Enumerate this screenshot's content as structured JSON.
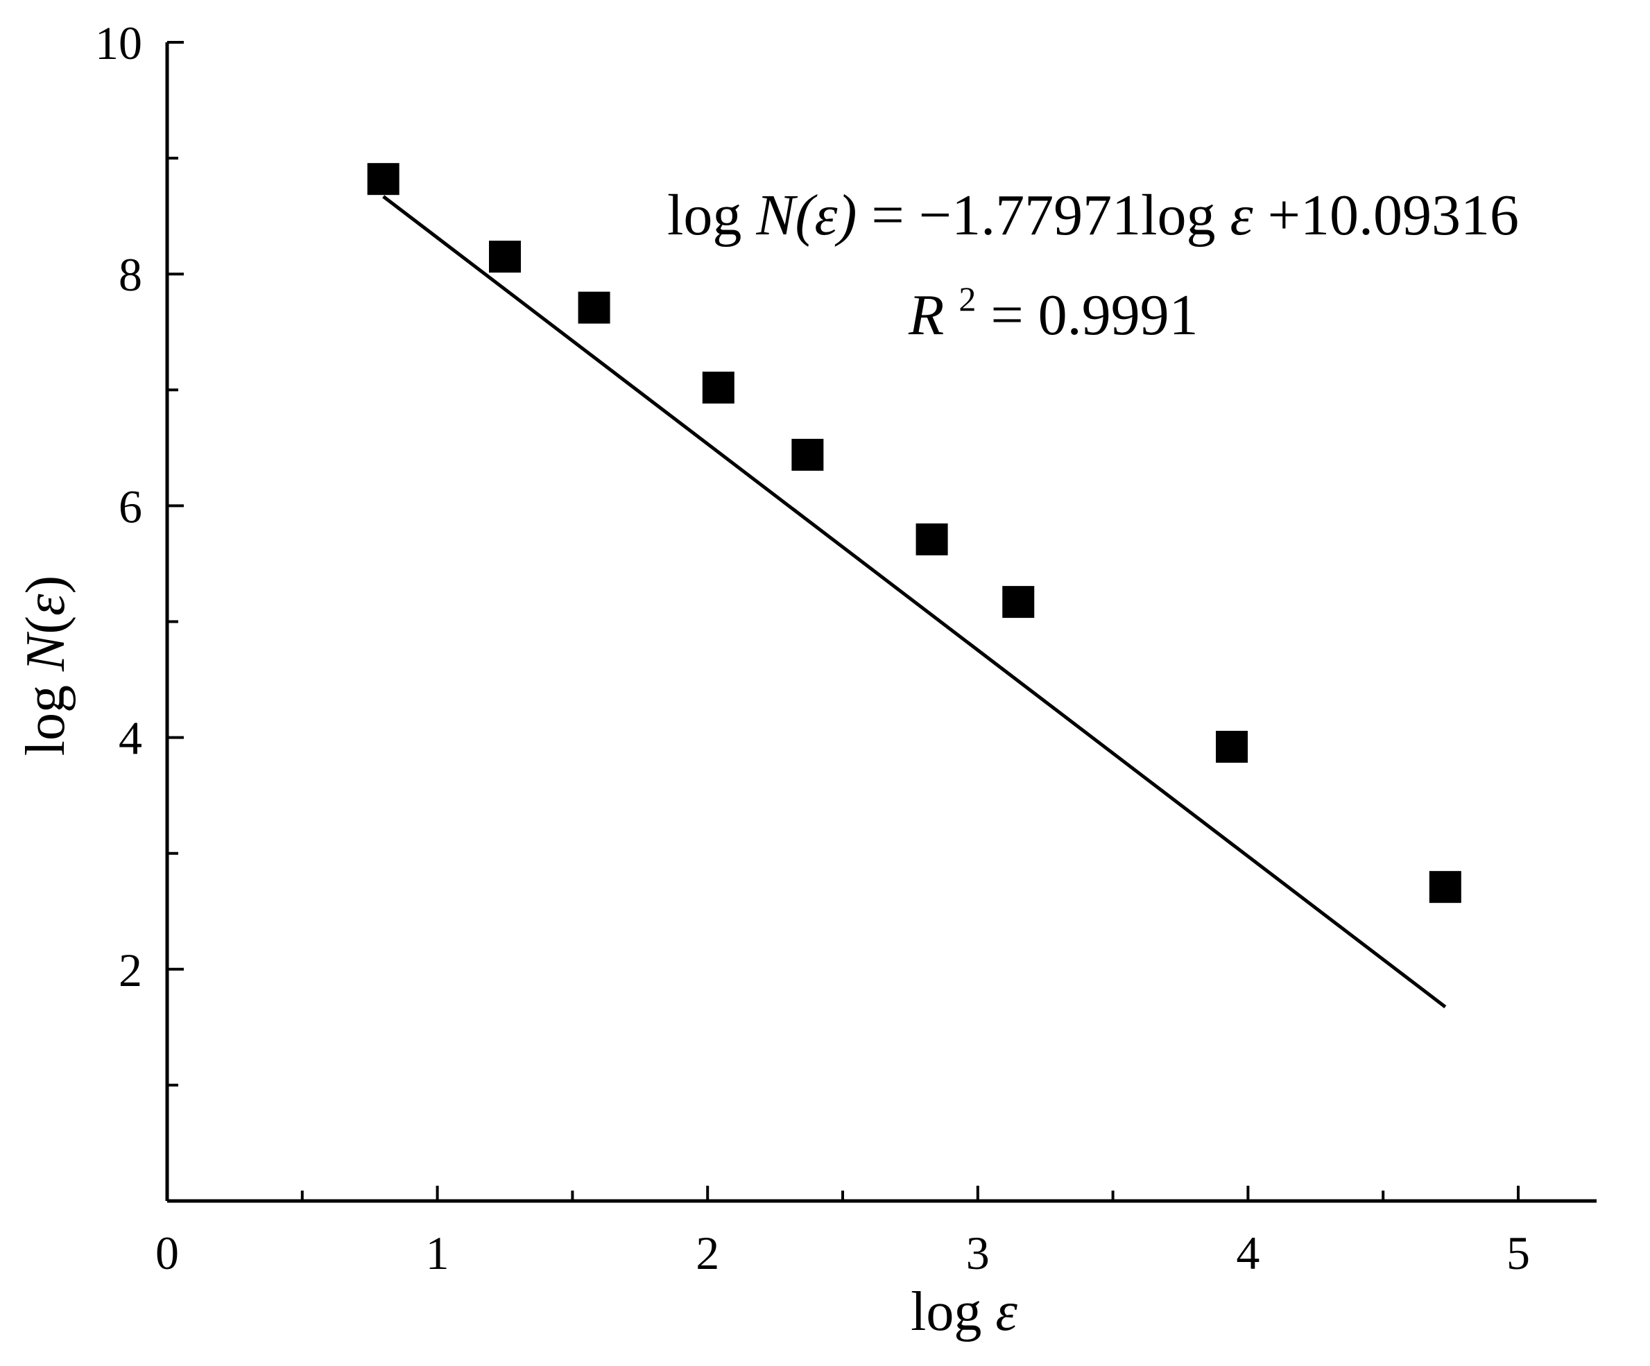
{
  "chart_data": {
    "type": "scatter",
    "title": "",
    "xlabel": "log ε",
    "ylabel": "log N(ε)",
    "xlim": [
      0,
      5.3
    ],
    "ylim": [
      0,
      10
    ],
    "x_ticks": [
      "0",
      "1",
      "2",
      "3",
      "4",
      "5"
    ],
    "y_ticks": [
      "2",
      "4",
      "6",
      "8",
      "10"
    ],
    "grid": false,
    "series": [
      {
        "marker": "square",
        "color": "#000000",
        "points": [
          {
            "x": 0.8,
            "y": 8.82
          },
          {
            "x": 1.25,
            "y": 8.15
          },
          {
            "x": 1.58,
            "y": 7.71
          },
          {
            "x": 2.04,
            "y": 7.02
          },
          {
            "x": 2.37,
            "y": 6.44
          },
          {
            "x": 2.83,
            "y": 5.71
          },
          {
            "x": 3.15,
            "y": 5.17
          },
          {
            "x": 3.94,
            "y": 3.92
          },
          {
            "x": 4.73,
            "y": 2.71
          }
        ]
      }
    ],
    "fit": {
      "slope": -1.77971,
      "intercept": 10.09316,
      "x_range": [
        0.8,
        4.73
      ]
    },
    "annotations": {
      "equation_lhs": "log",
      "equation_var": "N(ε)",
      "equation_mid": " = −1.77971log",
      "equation_eps": "ε",
      "equation_rhs": " +10.09316",
      "r2_var": "R",
      "r2_exp": "2",
      "r2_val": " = 0.9991"
    }
  }
}
